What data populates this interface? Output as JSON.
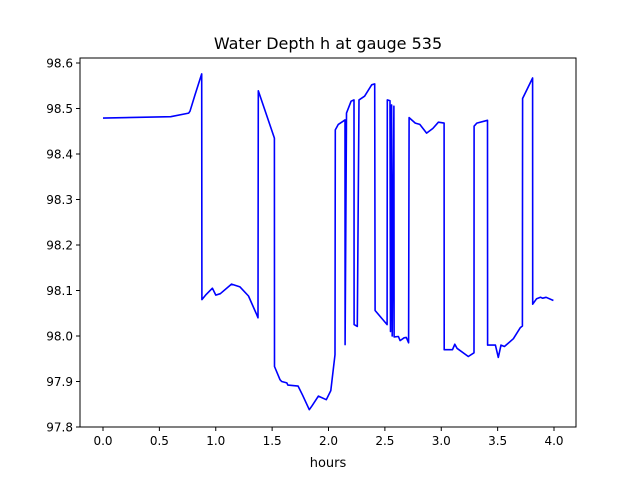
{
  "chart_data": {
    "type": "line",
    "title": "Water Depth h at gauge 535",
    "xlabel": "hours",
    "ylabel": "",
    "xlim": [
      -0.204,
      4.195
    ],
    "ylim": [
      97.8,
      98.611
    ],
    "xticks": [
      0.0,
      0.5,
      1.0,
      1.5,
      2.0,
      2.5,
      3.0,
      3.5,
      4.0
    ],
    "xtick_labels": [
      "0.0",
      "0.5",
      "1.0",
      "1.5",
      "2.0",
      "2.5",
      "3.0",
      "3.5",
      "4.0"
    ],
    "yticks": [
      97.8,
      97.9,
      98.0,
      98.1,
      98.2,
      98.3,
      98.4,
      98.5,
      98.6
    ],
    "ytick_labels": [
      "97.8",
      "97.9",
      "98.0",
      "98.1",
      "98.2",
      "98.3",
      "98.4",
      "98.5",
      "98.6"
    ],
    "grid": false,
    "series": [
      {
        "name": "h",
        "color": "#0000ff",
        "x": [
          0,
          0.6,
          0.76,
          0.772,
          0.816,
          0.875,
          0.877,
          0.91,
          0.97,
          1.0,
          1.04,
          1.14,
          1.215,
          1.29,
          1.363,
          1.375,
          1.377,
          1.52,
          1.521,
          1.57,
          1.585,
          1.63,
          1.64,
          1.73,
          1.77,
          1.83,
          1.855,
          1.91,
          1.98,
          2.02,
          2.058,
          2.06,
          2.087,
          2.13,
          2.146,
          2.147,
          2.16,
          2.2,
          2.226,
          2.227,
          2.255,
          2.27,
          2.32,
          2.383,
          2.41,
          2.413,
          2.52,
          2.521,
          2.545,
          2.55,
          2.56,
          2.565,
          2.58,
          2.582,
          2.62,
          2.635,
          2.67,
          2.69,
          2.71,
          2.715,
          2.77,
          2.81,
          2.87,
          2.925,
          2.975,
          3.025,
          3.026,
          3.1,
          3.12,
          3.14,
          3.24,
          3.29,
          3.291,
          3.315,
          3.41,
          3.411,
          3.48,
          3.506,
          3.53,
          3.56,
          3.64,
          3.7,
          3.72,
          3.721,
          3.81,
          3.811,
          3.846,
          3.88,
          3.9,
          3.93,
          3.995
        ],
        "y": [
          98.479,
          98.482,
          98.49,
          98.494,
          98.53,
          98.576,
          98.08,
          98.09,
          98.105,
          98.09,
          98.093,
          98.114,
          98.108,
          98.088,
          98.047,
          98.04,
          98.539,
          98.435,
          97.933,
          97.904,
          97.9,
          97.897,
          97.892,
          97.89,
          97.87,
          97.838,
          97.847,
          97.868,
          97.86,
          97.88,
          97.959,
          98.453,
          98.465,
          98.472,
          98.475,
          97.981,
          98.49,
          98.516,
          98.519,
          98.025,
          98.021,
          98.519,
          98.527,
          98.552,
          98.554,
          98.056,
          98.025,
          98.519,
          98.517,
          98.01,
          98.508,
          98.0,
          98.505,
          97.998,
          97.999,
          97.99,
          97.996,
          97.997,
          97.985,
          98.48,
          98.468,
          98.465,
          98.446,
          98.456,
          98.47,
          98.468,
          97.97,
          97.97,
          97.982,
          97.973,
          97.955,
          97.963,
          98.461,
          98.468,
          98.474,
          97.98,
          97.98,
          97.953,
          97.98,
          97.977,
          97.994,
          98.018,
          98.022,
          98.522,
          98.567,
          98.07,
          98.082,
          98.085,
          98.083,
          98.085,
          98.078
        ]
      }
    ]
  }
}
